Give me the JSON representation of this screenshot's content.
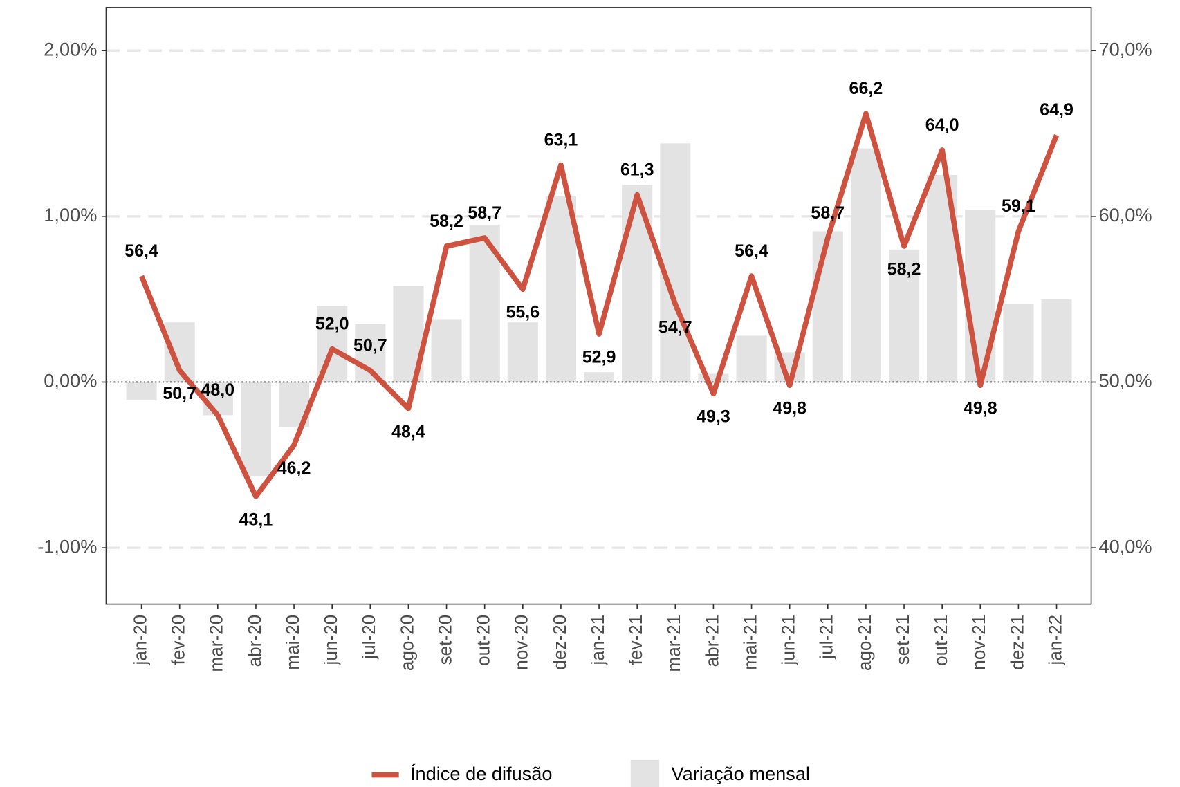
{
  "chart_data": {
    "type": "bar-line",
    "categories": [
      "jan-20",
      "fev-20",
      "mar-20",
      "abr-20",
      "mai-20",
      "jun-20",
      "jul-20",
      "ago-20",
      "set-20",
      "out-20",
      "nov-20",
      "dez-20",
      "jan-21",
      "fev-21",
      "mar-21",
      "abr-21",
      "mai-21",
      "jun-21",
      "jul-21",
      "ago-21",
      "set-21",
      "out-21",
      "nov-21",
      "dez-21",
      "jan-22"
    ],
    "series": [
      {
        "name": "Variação mensal",
        "type": "bar",
        "color": "#e3e3e3",
        "values": [
          -0.11,
          0.36,
          -0.2,
          -0.57,
          -0.27,
          0.46,
          0.35,
          0.58,
          0.38,
          0.95,
          0.36,
          1.12,
          0.06,
          1.19,
          1.44,
          0.05,
          0.28,
          0.18,
          0.91,
          1.41,
          0.8,
          1.25,
          1.04,
          0.47,
          0.5
        ]
      },
      {
        "name": "Índice de difusão",
        "type": "line",
        "axis": "y2",
        "color": "#cd5340",
        "values": [
          56.4,
          50.7,
          48.0,
          43.1,
          46.2,
          52.0,
          50.7,
          48.4,
          58.2,
          58.7,
          55.6,
          63.1,
          52.9,
          61.3,
          54.7,
          49.3,
          56.4,
          49.8,
          58.7,
          66.2,
          58.2,
          64.0,
          49.8,
          59.1,
          64.9
        ],
        "value_labels": [
          "56,4",
          "50,7",
          "48,0",
          "43,1",
          "46,2",
          "52,0",
          "50,7",
          "48,4",
          "58,2",
          "58,7",
          "55,6",
          "63,1",
          "52,9",
          "61,3",
          "54,7",
          "49,3",
          "56,4",
          "49,8",
          "58,7",
          "66,2",
          "58,2",
          "64,0",
          "49,8",
          "59,1",
          "64,9"
        ]
      }
    ],
    "ylim": [
      -1.34,
      2.26
    ],
    "yticks": [
      {
        "value": -1,
        "label": "-1,00%"
      },
      {
        "value": 0,
        "label": "0,00%"
      },
      {
        "value": 1,
        "label": "1,00%"
      },
      {
        "value": 2,
        "label": "2,00%"
      }
    ],
    "y2lim": [
      36.6,
      72.6
    ],
    "y2ticks": [
      {
        "value": 40,
        "label": "40,0%"
      },
      {
        "value": 50,
        "label": "50,0%"
      },
      {
        "value": 60,
        "label": "60,0%"
      },
      {
        "value": 70,
        "label": "70,0%"
      }
    ],
    "grid": true,
    "legend": "bottom"
  }
}
